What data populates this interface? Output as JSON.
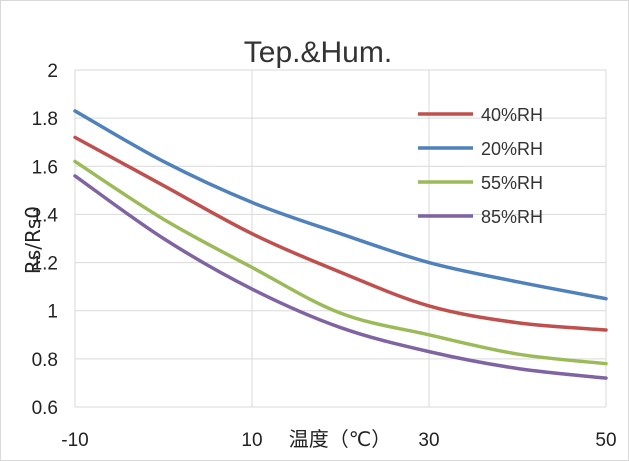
{
  "chart_data": {
    "type": "line",
    "title": "Tep.&Hum.",
    "xlabel": "温度（℃）",
    "ylabel": "Rs/Rs0",
    "x_ticks": [
      "-10",
      "10",
      "30",
      "50"
    ],
    "y_ticks": [
      "0.6",
      "0.8",
      "1",
      "1.2",
      "1.4",
      "1.6",
      "1.8",
      "2"
    ],
    "xlim": [
      -10,
      50
    ],
    "ylim": [
      0.6,
      2
    ],
    "grid": true,
    "legend_position": "top-right",
    "series": [
      {
        "name": "40%RH",
        "color": "#c0504d",
        "x": [
          -10,
          0,
          10,
          20,
          30,
          40,
          50
        ],
        "y": [
          1.72,
          1.52,
          1.32,
          1.16,
          1.02,
          0.95,
          0.92
        ]
      },
      {
        "name": "20%RH",
        "color": "#4f81bd",
        "x": [
          -10,
          0,
          10,
          20,
          30,
          40,
          50
        ],
        "y": [
          1.83,
          1.62,
          1.45,
          1.32,
          1.2,
          1.12,
          1.05
        ]
      },
      {
        "name": "55%RH",
        "color": "#9bbb59",
        "x": [
          -10,
          0,
          10,
          20,
          30,
          40,
          50
        ],
        "y": [
          1.62,
          1.38,
          1.18,
          0.99,
          0.9,
          0.82,
          0.78
        ]
      },
      {
        "name": "85%RH",
        "color": "#8064a2",
        "x": [
          -10,
          0,
          10,
          20,
          30,
          40,
          50
        ],
        "y": [
          1.56,
          1.3,
          1.09,
          0.93,
          0.83,
          0.76,
          0.72
        ]
      }
    ],
    "legend_order": [
      0,
      1,
      2,
      3
    ]
  }
}
